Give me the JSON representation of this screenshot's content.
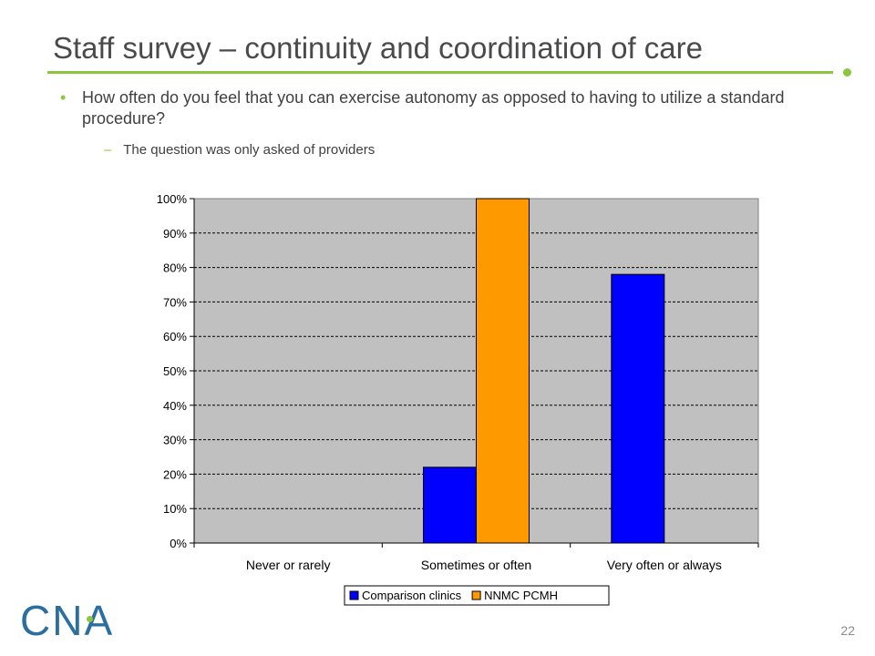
{
  "slide": {
    "title": "Staff survey – continuity and coordination of care",
    "bullet": "How often do you feel that you can exercise autonomy as opposed to having to utilize a standard procedure?",
    "bullet_marker": "•",
    "sub_bullet": "The question was only asked of providers",
    "sub_bullet_marker": "–",
    "logo_text": "CNA",
    "page_number": "22",
    "colors": {
      "title_rule": "#8cc63f",
      "bullet_marker": "#8cc63f",
      "logo": "#2a6f9f"
    }
  },
  "chart_data": {
    "type": "bar",
    "categories": [
      "Never or rarely",
      "Sometimes or often",
      "Very often or always"
    ],
    "series": [
      {
        "name": "Comparison clinics",
        "values": [
          0,
          22,
          78
        ],
        "color": "#0000ff"
      },
      {
        "name": "NNMC PCMH",
        "values": [
          0,
          100,
          0
        ],
        "color": "#ff9900"
      }
    ],
    "ylim": [
      0,
      100
    ],
    "y_ticks": [
      0,
      10,
      20,
      30,
      40,
      50,
      60,
      70,
      80,
      90,
      100
    ],
    "y_tick_suffix": "%",
    "grid": true,
    "legend_position": "bottom",
    "plot_background": "#c0c0c0"
  }
}
